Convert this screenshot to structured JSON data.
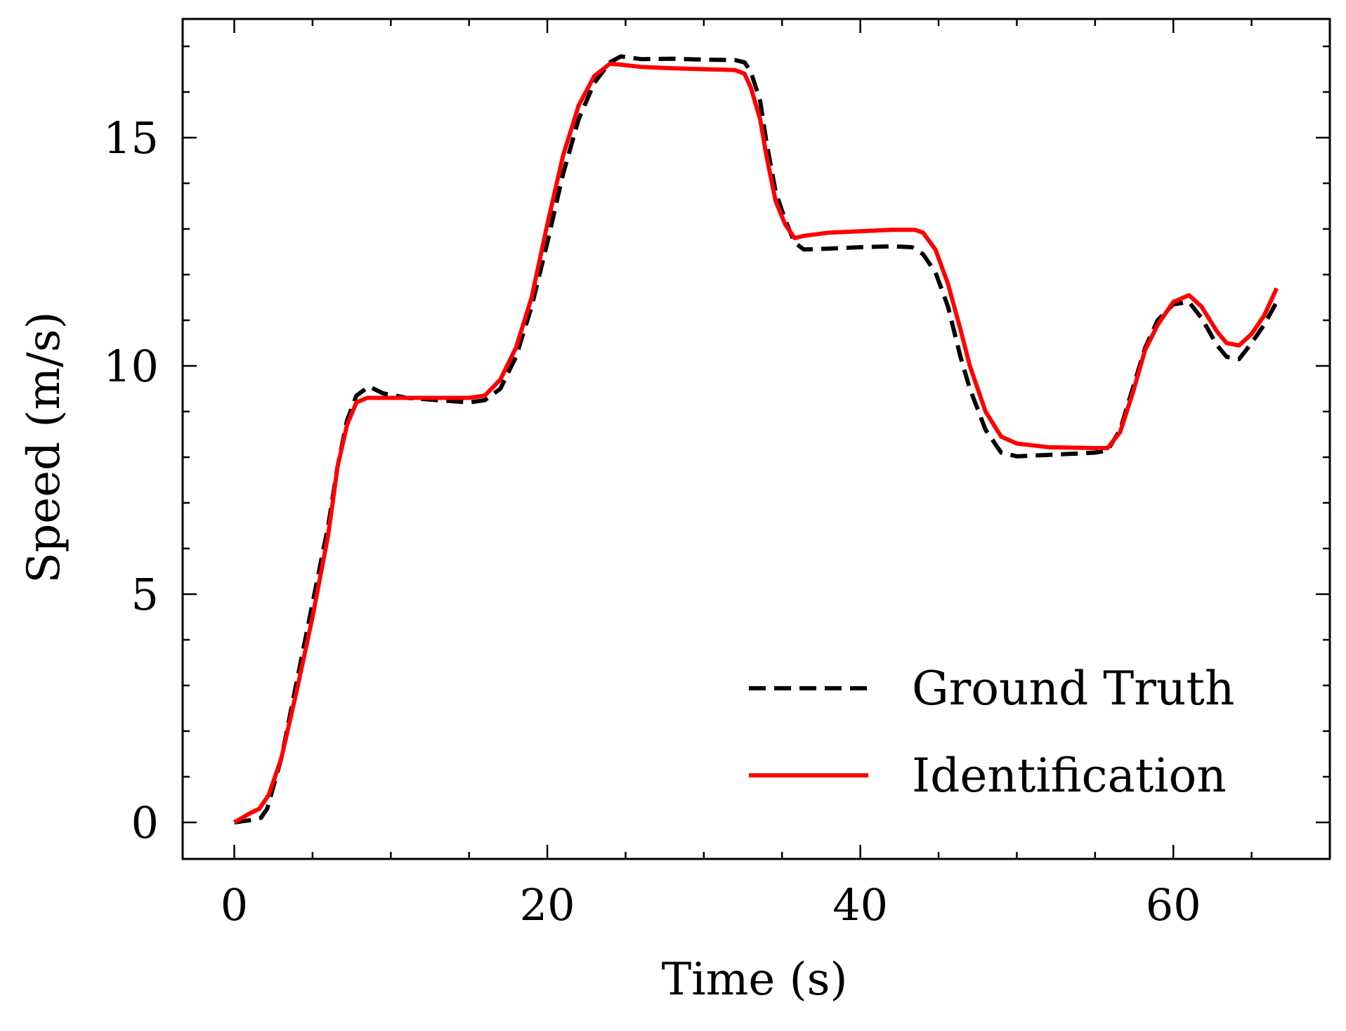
{
  "chart_data": {
    "type": "line",
    "title": "",
    "xlabel": "Time (s)",
    "ylabel": "Speed (m/s)",
    "xlim": [
      -3.3,
      70
    ],
    "ylim": [
      -0.8,
      17.6
    ],
    "xticks": [
      0,
      20,
      40,
      60
    ],
    "yticks": [
      0,
      5,
      10,
      15
    ],
    "xtick_labels": [
      "0",
      "20",
      "40",
      "60"
    ],
    "ytick_labels": [
      "0",
      "5",
      "10",
      "15"
    ],
    "grid": false,
    "legend_position": "lower-right",
    "series": [
      {
        "name": "Ground Truth",
        "color": "#000000",
        "style": "dashed",
        "x": [
          0,
          1,
          1.7,
          2.1,
          3,
          4,
          5,
          6,
          6.6,
          7.2,
          7.8,
          8.6,
          9.5,
          11,
          13,
          15,
          16,
          17,
          18,
          19,
          20,
          21,
          22,
          23,
          24,
          24.7,
          26,
          28,
          30,
          32,
          32.6,
          33,
          33.6,
          34,
          34.6,
          35.2,
          35.8,
          36.4,
          38,
          40,
          42,
          43.3,
          44,
          44.8,
          45.6,
          46.4,
          47,
          48,
          49,
          50,
          52,
          55,
          55.8,
          56.6,
          57.4,
          58.2,
          59,
          60,
          61,
          61.8,
          62.8,
          63.4,
          64.2,
          65,
          65.8,
          66.6
        ],
        "y": [
          0.0,
          0.05,
          0.1,
          0.3,
          1.4,
          3.1,
          4.8,
          6.5,
          7.8,
          8.8,
          9.35,
          9.55,
          9.4,
          9.3,
          9.25,
          9.2,
          9.25,
          9.5,
          10.2,
          11.3,
          12.7,
          14.2,
          15.4,
          16.2,
          16.65,
          16.78,
          16.72,
          16.73,
          16.71,
          16.7,
          16.65,
          16.45,
          15.8,
          14.9,
          13.8,
          13.2,
          12.7,
          12.55,
          12.57,
          12.6,
          12.62,
          12.6,
          12.45,
          12.05,
          11.3,
          10.2,
          9.5,
          8.6,
          8.1,
          8.02,
          8.05,
          8.1,
          8.15,
          8.6,
          9.5,
          10.4,
          11.0,
          11.35,
          11.4,
          11.05,
          10.45,
          10.2,
          10.15,
          10.5,
          10.9,
          11.4
        ]
      },
      {
        "name": "Identification",
        "color": "#ff0000",
        "style": "solid",
        "x": [
          0,
          1,
          1.6,
          2.2,
          3,
          4,
          5,
          6,
          6.6,
          7.2,
          7.8,
          8.5,
          9.5,
          11,
          13,
          15,
          16,
          17,
          18,
          19,
          20,
          21,
          22,
          23,
          24,
          24.7,
          26,
          28,
          30,
          32,
          32.6,
          33,
          33.6,
          34,
          34.6,
          35.2,
          35.8,
          36.4,
          38,
          40,
          42,
          43.5,
          44,
          44.8,
          45.6,
          46.4,
          47,
          48,
          49,
          50,
          52,
          55,
          55.8,
          56.6,
          57.4,
          58.2,
          59,
          60,
          61,
          61.8,
          62.8,
          63.4,
          64.2,
          65,
          65.8,
          66.6
        ],
        "y": [
          0.0,
          0.2,
          0.3,
          0.6,
          1.4,
          2.9,
          4.5,
          6.3,
          7.8,
          8.7,
          9.2,
          9.3,
          9.3,
          9.3,
          9.3,
          9.3,
          9.35,
          9.7,
          10.4,
          11.5,
          13.1,
          14.6,
          15.7,
          16.35,
          16.62,
          16.6,
          16.55,
          16.52,
          16.5,
          16.48,
          16.4,
          16.1,
          15.4,
          14.6,
          13.6,
          13.1,
          12.8,
          12.85,
          12.92,
          12.95,
          12.98,
          12.98,
          12.92,
          12.55,
          11.8,
          10.8,
          10.0,
          9.0,
          8.45,
          8.3,
          8.22,
          8.2,
          8.2,
          8.55,
          9.4,
          10.35,
          10.9,
          11.4,
          11.55,
          11.3,
          10.75,
          10.5,
          10.45,
          10.7,
          11.1,
          11.7
        ]
      }
    ]
  }
}
